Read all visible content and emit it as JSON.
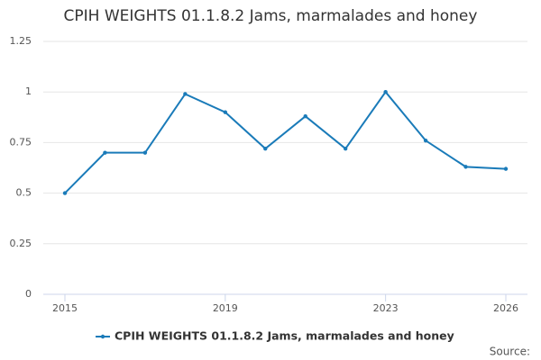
{
  "chart_data": {
    "type": "line",
    "title": "CPIH WEIGHTS 01.1.8.2 Jams, marmalades and honey",
    "x": [
      2015,
      2016,
      2017,
      2018,
      2019,
      2020,
      2021,
      2022,
      2023,
      2024,
      2025,
      2026
    ],
    "series": [
      {
        "name": "CPIH WEIGHTS 01.1.8.2 Jams, marmalades and honey",
        "color": "#1a7bb9",
        "values": [
          0.5,
          0.7,
          0.7,
          0.99,
          0.9,
          0.72,
          0.88,
          0.72,
          1.0,
          0.76,
          0.63,
          0.62
        ]
      }
    ],
    "xlim": [
      2015,
      2026
    ],
    "xticks": [
      2015,
      2019,
      2023,
      2026
    ],
    "ylim": [
      0,
      1.25
    ],
    "yticks": [
      0,
      0.25,
      0.5,
      0.75,
      1,
      1.25
    ],
    "grid": true,
    "legend": "bottom",
    "source": "Source:"
  }
}
